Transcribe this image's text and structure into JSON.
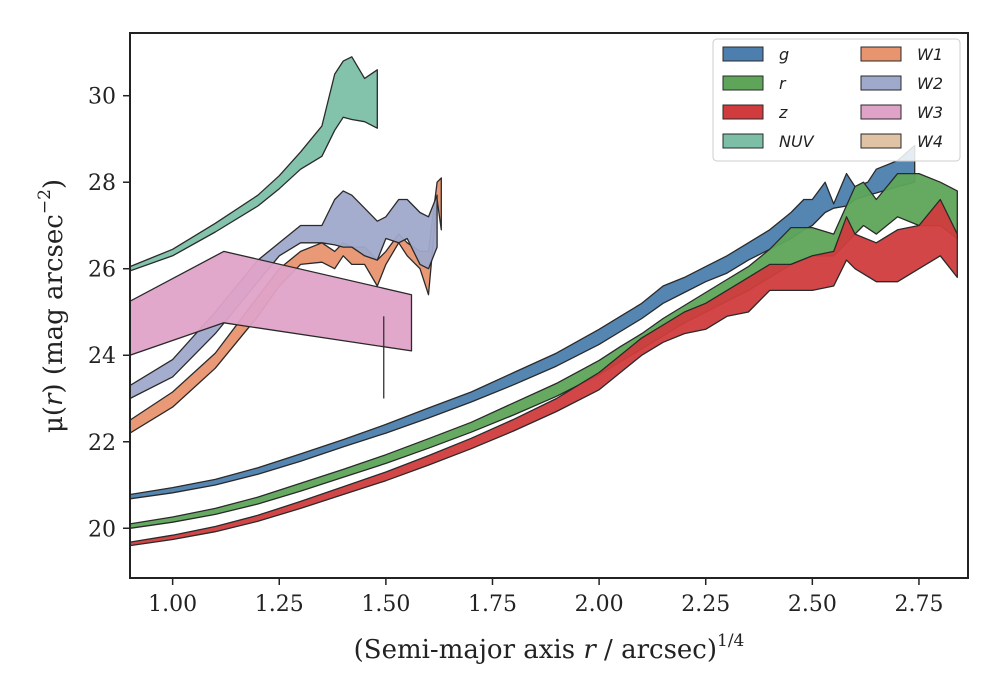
{
  "chart_data": {
    "type": "area",
    "xlabel": {
      "prefix": "(Semi-major axis ",
      "var": "r",
      "suffix": " / arcsec)",
      "sup": "1/4"
    },
    "ylabel": {
      "prefix": "μ(",
      "var": "r",
      "suffix": ") (mag arcsec",
      "sup": "−2",
      "close": ")"
    },
    "xlim": [
      0.9,
      2.865
    ],
    "ylim": [
      31.45,
      18.85
    ],
    "xticks": [
      {
        "value": 1.0,
        "label": "1.00"
      },
      {
        "value": 1.25,
        "label": "1.25"
      },
      {
        "value": 1.5,
        "label": "1.50"
      },
      {
        "value": 1.75,
        "label": "1.75"
      },
      {
        "value": 2.0,
        "label": "2.00"
      },
      {
        "value": 2.25,
        "label": "2.25"
      },
      {
        "value": 2.5,
        "label": "2.50"
      },
      {
        "value": 2.75,
        "label": "2.75"
      }
    ],
    "yticks": [
      {
        "value": 20,
        "label": "20"
      },
      {
        "value": 22,
        "label": "22"
      },
      {
        "value": 24,
        "label": "24"
      },
      {
        "value": 26,
        "label": "26"
      },
      {
        "value": 28,
        "label": "28"
      },
      {
        "value": 30,
        "label": "30"
      }
    ],
    "legend_position": "top-right",
    "legend_columns": 2,
    "series": [
      {
        "name": "g",
        "color": "#4c7fae",
        "x": [
          0.9,
          1.0,
          1.1,
          1.2,
          1.3,
          1.4,
          1.5,
          1.6,
          1.7,
          1.8,
          1.9,
          2.0,
          2.05,
          2.1,
          2.15,
          2.2,
          2.25,
          2.3,
          2.35,
          2.4,
          2.45,
          2.48,
          2.5,
          2.53,
          2.55,
          2.58,
          2.6,
          2.63,
          2.65,
          2.7,
          2.74
        ],
        "low": [
          20.68,
          20.82,
          21.0,
          21.25,
          21.55,
          21.88,
          22.2,
          22.55,
          22.92,
          23.32,
          23.75,
          24.25,
          24.55,
          24.85,
          25.2,
          25.45,
          25.7,
          25.9,
          26.2,
          26.45,
          26.7,
          26.9,
          27.0,
          27.3,
          27.4,
          27.45,
          27.6,
          27.7,
          27.75,
          27.9,
          28.0
        ],
        "high": [
          20.78,
          20.94,
          21.13,
          21.4,
          21.72,
          22.05,
          22.4,
          22.78,
          23.15,
          23.6,
          24.05,
          24.6,
          24.9,
          25.2,
          25.6,
          25.8,
          26.05,
          26.3,
          26.6,
          26.9,
          27.3,
          27.6,
          27.6,
          28.0,
          27.5,
          28.2,
          27.9,
          28.0,
          28.3,
          28.5,
          28.85
        ]
      },
      {
        "name": "r",
        "color": "#5ea55a",
        "x": [
          0.9,
          1.0,
          1.1,
          1.2,
          1.3,
          1.4,
          1.5,
          1.6,
          1.7,
          1.8,
          1.9,
          2.0,
          2.05,
          2.1,
          2.15,
          2.2,
          2.25,
          2.3,
          2.35,
          2.4,
          2.45,
          2.5,
          2.55,
          2.6,
          2.62,
          2.65,
          2.7,
          2.75,
          2.8,
          2.84
        ],
        "low": [
          20.0,
          20.14,
          20.32,
          20.56,
          20.86,
          21.18,
          21.5,
          21.85,
          22.22,
          22.62,
          23.05,
          23.55,
          23.85,
          24.15,
          24.45,
          24.75,
          25.0,
          25.25,
          25.5,
          25.8,
          26.1,
          26.3,
          26.3,
          26.8,
          27.0,
          26.8,
          27.2,
          27.0,
          27.0,
          26.7
        ],
        "high": [
          20.1,
          20.26,
          20.46,
          20.72,
          21.04,
          21.36,
          21.7,
          22.07,
          22.45,
          22.9,
          23.35,
          23.88,
          24.2,
          24.5,
          24.85,
          25.15,
          25.45,
          25.75,
          26.05,
          26.45,
          26.95,
          26.95,
          26.8,
          27.9,
          28.0,
          27.6,
          28.2,
          28.2,
          28.0,
          27.8
        ]
      },
      {
        "name": "z",
        "color": "#d03c3d",
        "x": [
          0.9,
          1.0,
          1.1,
          1.2,
          1.3,
          1.4,
          1.5,
          1.6,
          1.7,
          1.8,
          1.9,
          2.0,
          2.05,
          2.1,
          2.15,
          2.2,
          2.25,
          2.3,
          2.35,
          2.4,
          2.45,
          2.5,
          2.55,
          2.58,
          2.6,
          2.65,
          2.7,
          2.75,
          2.8,
          2.84
        ],
        "low": [
          19.6,
          19.74,
          19.92,
          20.16,
          20.46,
          20.78,
          21.1,
          21.46,
          21.84,
          22.25,
          22.7,
          23.2,
          23.6,
          24.0,
          24.3,
          24.5,
          24.6,
          24.9,
          25.0,
          25.5,
          25.5,
          25.5,
          25.6,
          26.2,
          26.0,
          25.7,
          25.7,
          26.0,
          26.3,
          25.8
        ],
        "high": [
          19.68,
          19.84,
          20.04,
          20.3,
          20.62,
          20.96,
          21.3,
          21.68,
          22.08,
          22.52,
          23.0,
          23.6,
          24.0,
          24.4,
          24.7,
          25.0,
          25.2,
          25.5,
          25.8,
          26.1,
          26.1,
          26.3,
          26.4,
          27.2,
          26.8,
          26.6,
          26.9,
          27.0,
          27.6,
          26.8
        ]
      },
      {
        "name": "NUV",
        "color": "#7cbfa6",
        "x": [
          0.9,
          1.0,
          1.1,
          1.2,
          1.25,
          1.3,
          1.35,
          1.38,
          1.4,
          1.42,
          1.45,
          1.48
        ],
        "low": [
          25.95,
          26.3,
          26.85,
          27.45,
          27.85,
          28.3,
          28.6,
          29.2,
          29.5,
          29.45,
          29.4,
          29.25
        ],
        "high": [
          26.05,
          26.45,
          27.05,
          27.7,
          28.15,
          28.7,
          29.3,
          30.5,
          30.8,
          30.9,
          30.4,
          30.6
        ]
      },
      {
        "name": "W1",
        "color": "#e8946e",
        "x": [
          0.9,
          1.0,
          1.1,
          1.2,
          1.25,
          1.3,
          1.35,
          1.38,
          1.4,
          1.42,
          1.45,
          1.48,
          1.5,
          1.53,
          1.55,
          1.58,
          1.6,
          1.62,
          1.63
        ],
        "low": [
          22.2,
          22.8,
          23.7,
          24.9,
          25.6,
          26.1,
          26.15,
          26.0,
          26.3,
          26.1,
          26.1,
          25.6,
          26.1,
          26.6,
          26.3,
          26.0,
          25.4,
          27.6,
          26.9
        ],
        "high": [
          22.5,
          23.15,
          24.05,
          25.35,
          26.0,
          26.4,
          26.6,
          26.4,
          26.6,
          26.5,
          26.5,
          26.2,
          26.4,
          26.8,
          26.6,
          26.4,
          26.4,
          28.0,
          28.1
        ]
      },
      {
        "name": "W2",
        "color": "#9fa9cb",
        "x": [
          0.9,
          1.0,
          1.1,
          1.2,
          1.25,
          1.3,
          1.35,
          1.38,
          1.4,
          1.42,
          1.45,
          1.48,
          1.5,
          1.53,
          1.55,
          1.58,
          1.6,
          1.62
        ],
        "low": [
          23.0,
          23.5,
          24.5,
          25.7,
          26.3,
          26.6,
          26.6,
          26.55,
          26.5,
          26.5,
          26.3,
          26.2,
          26.7,
          26.6,
          26.7,
          26.1,
          26.0,
          26.5
        ],
        "high": [
          23.3,
          23.9,
          25.0,
          26.2,
          26.6,
          27.0,
          27.0,
          27.6,
          27.8,
          27.7,
          27.4,
          27.1,
          27.2,
          27.6,
          27.6,
          27.3,
          27.2,
          27.7
        ]
      },
      {
        "name": "W3",
        "color": "#e0a3c8",
        "x": [
          0.9,
          1.12,
          1.56
        ],
        "low": [
          24.0,
          24.75,
          24.1
        ],
        "high": [
          25.25,
          26.4,
          25.4
        ]
      },
      {
        "name": "W4",
        "color": "#dfc3a4",
        "x": [],
        "low": [],
        "high": []
      }
    ],
    "annotations": [
      {
        "type": "vline",
        "x": 1.495,
        "y1": 23.0,
        "y2": 24.9,
        "color": "#333333"
      }
    ]
  }
}
